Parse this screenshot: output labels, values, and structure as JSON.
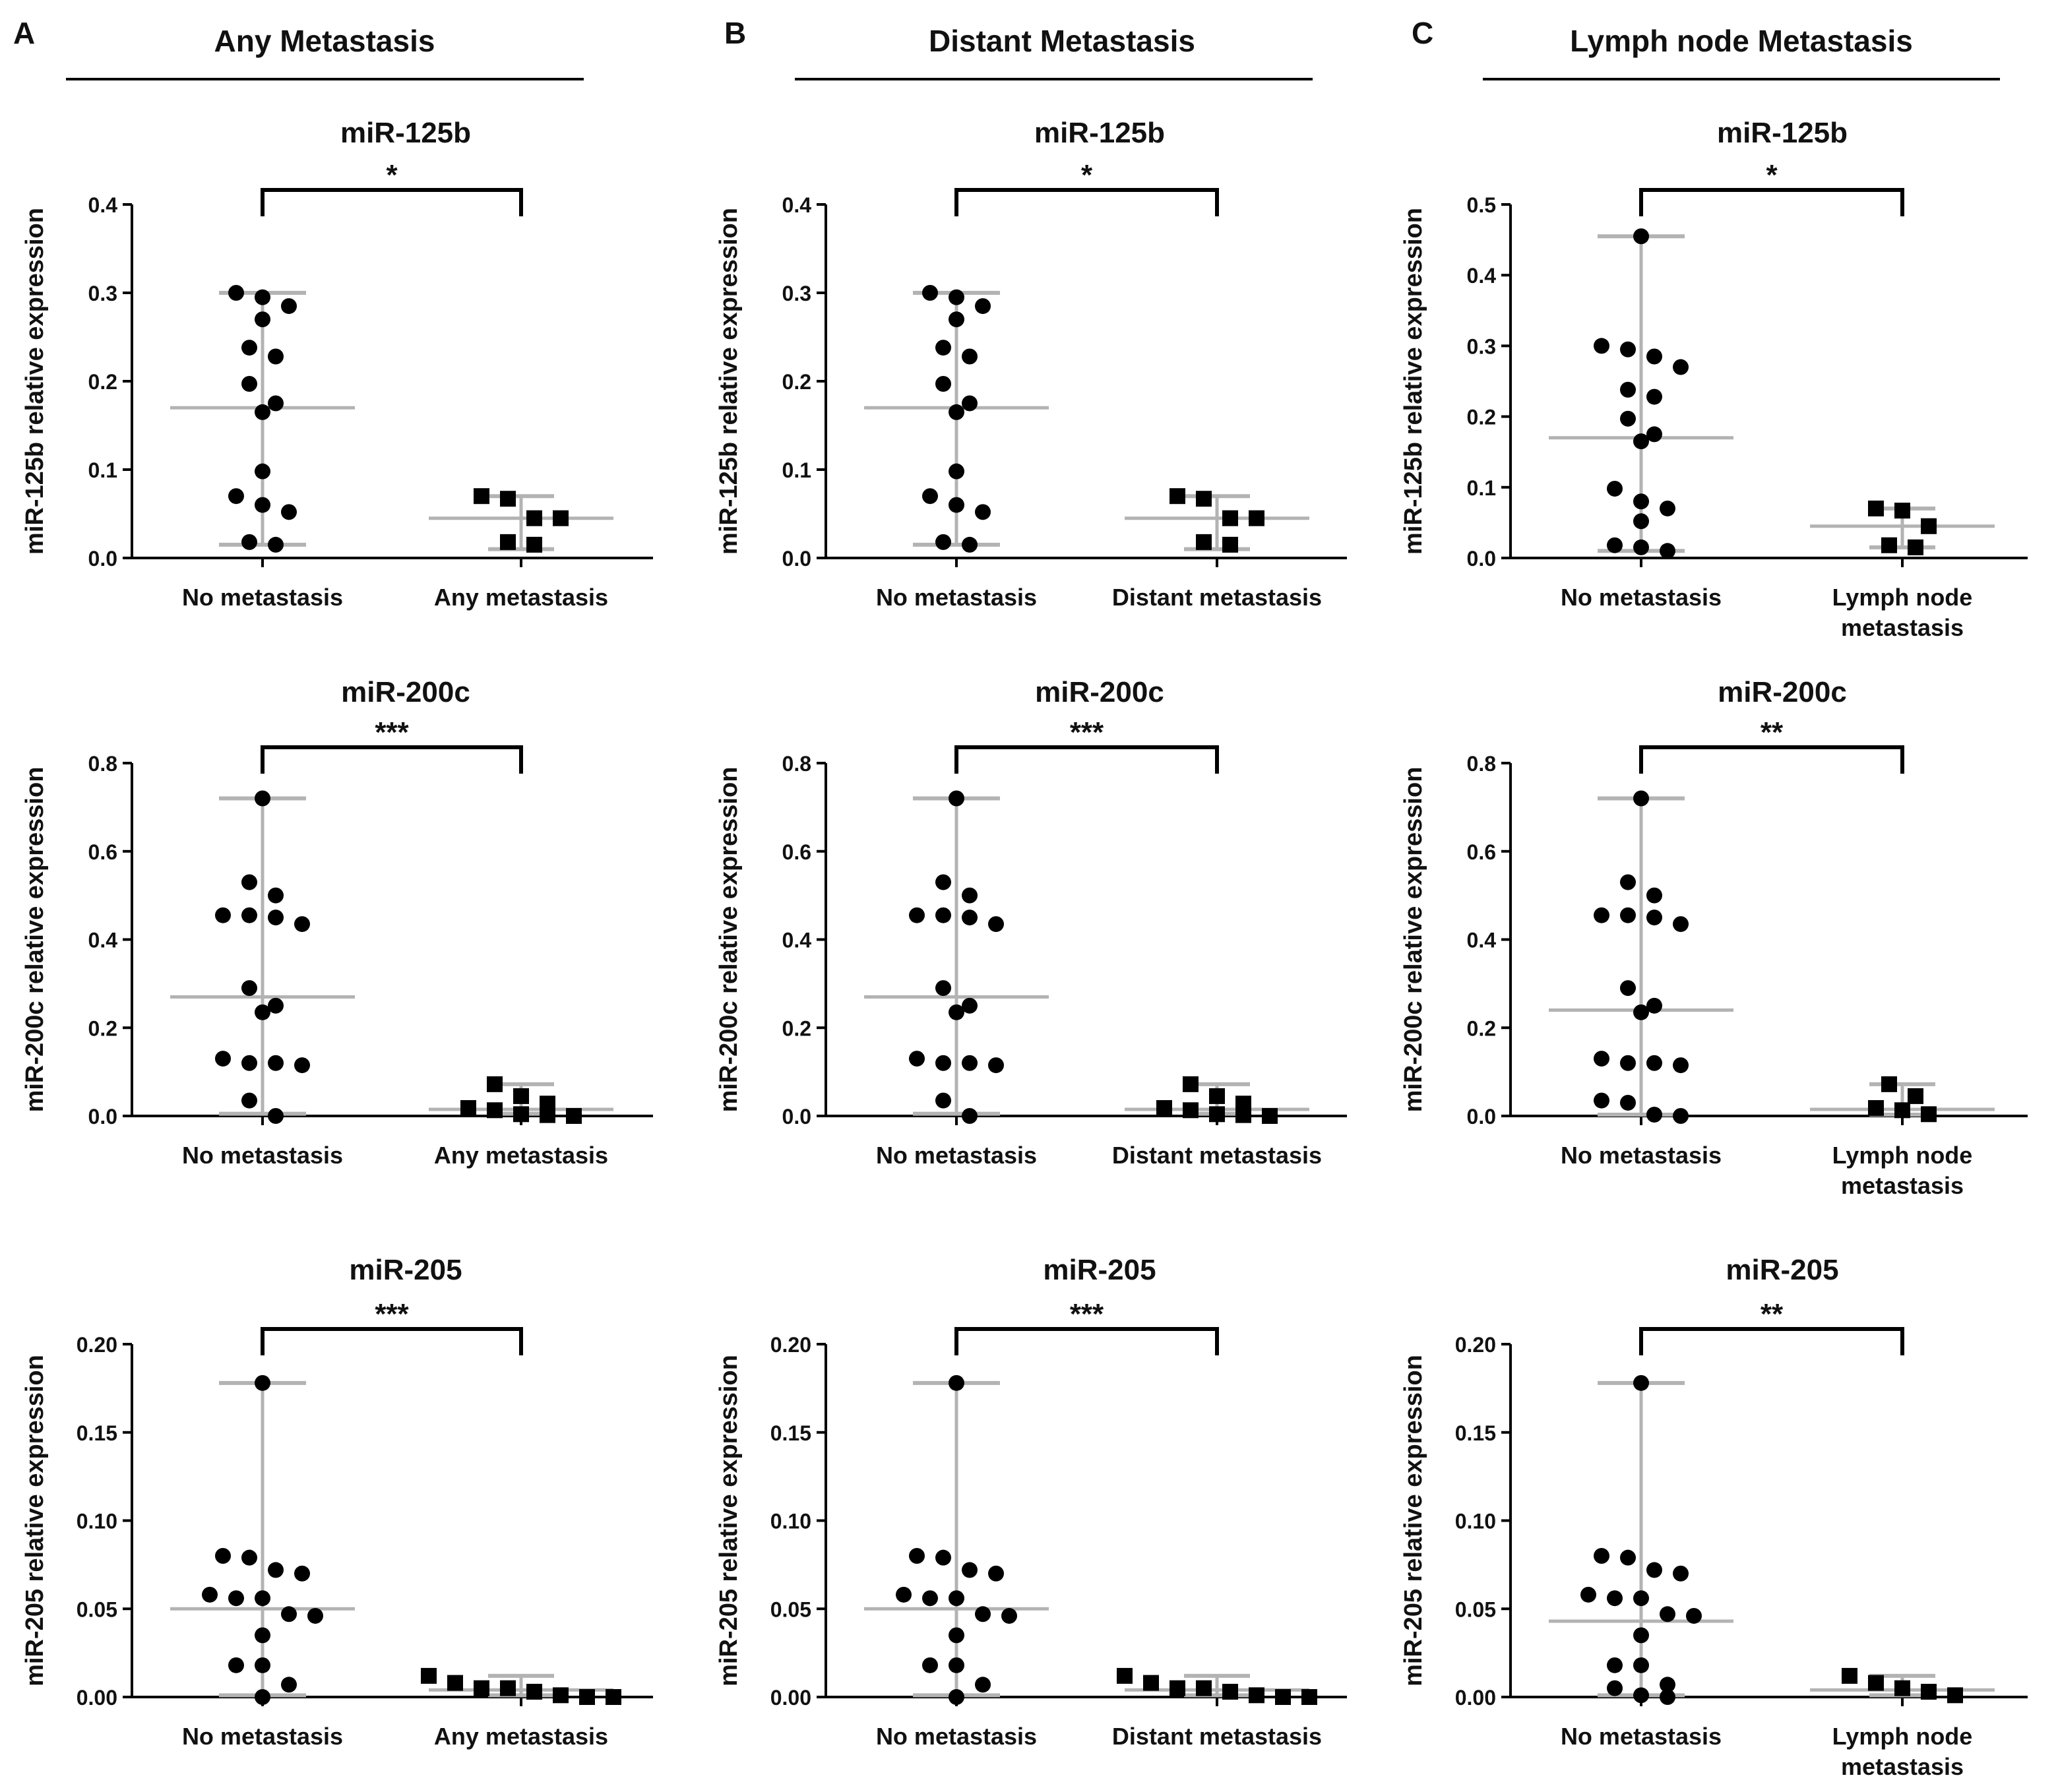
{
  "colors": {
    "points": "#000000",
    "whisker": "#b3b3b3",
    "axis": "#000000"
  },
  "sections": [
    {
      "letter": "A",
      "title": "Any Metastasis"
    },
    {
      "letter": "B",
      "title": "Distant Metastasis"
    },
    {
      "letter": "C",
      "title": "Lymph node Metastasis"
    }
  ],
  "chart_data": [
    {
      "type": "scatter",
      "panel": "A",
      "row": 0,
      "title": "miR-125b",
      "ylabel": "miR-125b relative expression",
      "ylim": [
        0,
        0.4
      ],
      "yticks": [
        0.0,
        0.1,
        0.2,
        0.3,
        0.4
      ],
      "ytick_labels": [
        "0.0",
        "0.1",
        "0.2",
        "0.3",
        "0.4"
      ],
      "significance": "*",
      "groups": [
        {
          "label": [
            "No metastasis"
          ],
          "marker": "circle",
          "median": 0.17,
          "min": 0.015,
          "max": 0.3,
          "values": [
            0.3,
            0.295,
            0.285,
            0.27,
            0.238,
            0.228,
            0.197,
            0.175,
            0.165,
            0.098,
            0.07,
            0.06,
            0.052,
            0.018,
            0.015
          ]
        },
        {
          "label": [
            "Any metastasis"
          ],
          "marker": "square",
          "median": 0.045,
          "min": 0.01,
          "max": 0.07,
          "values": [
            0.07,
            0.067,
            0.045,
            0.045,
            0.018,
            0.015
          ]
        }
      ]
    },
    {
      "type": "scatter",
      "panel": "B",
      "row": 0,
      "title": "miR-125b",
      "ylabel": "miR-125b relative expression",
      "ylim": [
        0,
        0.4
      ],
      "yticks": [
        0.0,
        0.1,
        0.2,
        0.3,
        0.4
      ],
      "ytick_labels": [
        "0.0",
        "0.1",
        "0.2",
        "0.3",
        "0.4"
      ],
      "significance": "*",
      "groups": [
        {
          "label": [
            "No metastasis"
          ],
          "marker": "circle",
          "median": 0.17,
          "min": 0.015,
          "max": 0.3,
          "values": [
            0.3,
            0.295,
            0.285,
            0.27,
            0.238,
            0.228,
            0.197,
            0.175,
            0.165,
            0.098,
            0.07,
            0.06,
            0.052,
            0.018,
            0.015
          ]
        },
        {
          "label": [
            "Distant metastasis"
          ],
          "marker": "square",
          "median": 0.045,
          "min": 0.01,
          "max": 0.07,
          "values": [
            0.07,
            0.067,
            0.045,
            0.045,
            0.018,
            0.015
          ]
        }
      ]
    },
    {
      "type": "scatter",
      "panel": "C",
      "row": 0,
      "title": "miR-125b",
      "ylabel": "miR-125b relative expression",
      "ylim": [
        0,
        0.5
      ],
      "yticks": [
        0.0,
        0.1,
        0.2,
        0.3,
        0.4,
        0.5
      ],
      "ytick_labels": [
        "0.0",
        "0.1",
        "0.2",
        "0.3",
        "0.4",
        "0.5"
      ],
      "significance": "*",
      "groups": [
        {
          "label": [
            "No metastasis"
          ],
          "marker": "circle",
          "median": 0.17,
          "min": 0.01,
          "max": 0.455,
          "values": [
            0.455,
            0.3,
            0.295,
            0.285,
            0.27,
            0.238,
            0.228,
            0.197,
            0.175,
            0.165,
            0.098,
            0.08,
            0.07,
            0.052,
            0.018,
            0.015,
            0.01
          ]
        },
        {
          "label": [
            "Lymph node",
            "metastasis"
          ],
          "marker": "square",
          "median": 0.045,
          "min": 0.015,
          "max": 0.07,
          "values": [
            0.07,
            0.067,
            0.045,
            0.018,
            0.015
          ]
        }
      ]
    },
    {
      "type": "scatter",
      "panel": "A",
      "row": 1,
      "title": "miR-200c",
      "ylabel": "miR-200c relative expression",
      "ylim": [
        0,
        0.8
      ],
      "yticks": [
        0.0,
        0.2,
        0.4,
        0.6,
        0.8
      ],
      "ytick_labels": [
        "0.0",
        "0.2",
        "0.4",
        "0.6",
        "0.8"
      ],
      "significance": "***",
      "groups": [
        {
          "label": [
            "No metastasis"
          ],
          "marker": "circle",
          "median": 0.27,
          "min": 0.005,
          "max": 0.72,
          "values": [
            0.72,
            0.53,
            0.5,
            0.455,
            0.455,
            0.45,
            0.435,
            0.29,
            0.25,
            0.235,
            0.13,
            0.12,
            0.12,
            0.115,
            0.035,
            0.0
          ]
        },
        {
          "label": [
            "Any metastasis"
          ],
          "marker": "square",
          "median": 0.015,
          "min": 0.005,
          "max": 0.072,
          "values": [
            0.072,
            0.045,
            0.028,
            0.018,
            0.013,
            0.004,
            0.002,
            0.0
          ]
        }
      ]
    },
    {
      "type": "scatter",
      "panel": "B",
      "row": 1,
      "title": "miR-200c",
      "ylabel": "miR-200c relative expression",
      "ylim": [
        0,
        0.8
      ],
      "yticks": [
        0.0,
        0.2,
        0.4,
        0.6,
        0.8
      ],
      "ytick_labels": [
        "0.0",
        "0.2",
        "0.4",
        "0.6",
        "0.8"
      ],
      "significance": "***",
      "groups": [
        {
          "label": [
            "No metastasis"
          ],
          "marker": "circle",
          "median": 0.27,
          "min": 0.005,
          "max": 0.72,
          "values": [
            0.72,
            0.53,
            0.5,
            0.455,
            0.455,
            0.45,
            0.435,
            0.29,
            0.25,
            0.235,
            0.13,
            0.12,
            0.12,
            0.115,
            0.035,
            0.0
          ]
        },
        {
          "label": [
            "Distant metastasis"
          ],
          "marker": "square",
          "median": 0.015,
          "min": 0.005,
          "max": 0.072,
          "values": [
            0.072,
            0.045,
            0.028,
            0.018,
            0.013,
            0.004,
            0.002,
            0.0
          ]
        }
      ]
    },
    {
      "type": "scatter",
      "panel": "C",
      "row": 1,
      "title": "miR-200c",
      "ylabel": "miR-200c relative expression",
      "ylim": [
        0,
        0.8
      ],
      "yticks": [
        0.0,
        0.2,
        0.4,
        0.6,
        0.8
      ],
      "ytick_labels": [
        "0.0",
        "0.2",
        "0.4",
        "0.6",
        "0.8"
      ],
      "significance": "**",
      "groups": [
        {
          "label": [
            "No metastasis"
          ],
          "marker": "circle",
          "median": 0.24,
          "min": 0.003,
          "max": 0.72,
          "values": [
            0.72,
            0.53,
            0.5,
            0.455,
            0.455,
            0.45,
            0.435,
            0.29,
            0.25,
            0.235,
            0.13,
            0.12,
            0.12,
            0.115,
            0.035,
            0.03,
            0.003,
            0.0
          ]
        },
        {
          "label": [
            "Lymph node",
            "metastasis"
          ],
          "marker": "square",
          "median": 0.015,
          "min": 0.003,
          "max": 0.072,
          "values": [
            0.072,
            0.045,
            0.018,
            0.013,
            0.004
          ]
        }
      ]
    },
    {
      "type": "scatter",
      "panel": "A",
      "row": 2,
      "title": "miR-205",
      "ylabel": "miR-205 relative expression",
      "ylim": [
        0,
        0.2
      ],
      "yticks": [
        0.0,
        0.05,
        0.1,
        0.15,
        0.2
      ],
      "ytick_labels": [
        "0.00",
        "0.05",
        "0.10",
        "0.15",
        "0.20"
      ],
      "significance": "***",
      "groups": [
        {
          "label": [
            "No metastasis"
          ],
          "marker": "circle",
          "median": 0.05,
          "min": 0.001,
          "max": 0.178,
          "values": [
            0.178,
            0.08,
            0.079,
            0.072,
            0.07,
            0.058,
            0.056,
            0.056,
            0.047,
            0.046,
            0.035,
            0.018,
            0.018,
            0.007,
            0.0
          ]
        },
        {
          "label": [
            "Any metastasis"
          ],
          "marker": "square",
          "median": 0.004,
          "min": 0.001,
          "max": 0.012,
          "values": [
            0.012,
            0.008,
            0.005,
            0.005,
            0.003,
            0.001,
            0.0,
            0.0
          ]
        }
      ]
    },
    {
      "type": "scatter",
      "panel": "B",
      "row": 2,
      "title": "miR-205",
      "ylabel": "miR-205 relative expression",
      "ylim": [
        0,
        0.2
      ],
      "yticks": [
        0.0,
        0.05,
        0.1,
        0.15,
        0.2
      ],
      "ytick_labels": [
        "0.00",
        "0.05",
        "0.10",
        "0.15",
        "0.20"
      ],
      "significance": "***",
      "groups": [
        {
          "label": [
            "No metastasis"
          ],
          "marker": "circle",
          "median": 0.05,
          "min": 0.001,
          "max": 0.178,
          "values": [
            0.178,
            0.08,
            0.079,
            0.072,
            0.07,
            0.058,
            0.056,
            0.056,
            0.047,
            0.046,
            0.035,
            0.018,
            0.018,
            0.007,
            0.0
          ]
        },
        {
          "label": [
            "Distant metastasis"
          ],
          "marker": "square",
          "median": 0.004,
          "min": 0.001,
          "max": 0.012,
          "values": [
            0.012,
            0.008,
            0.005,
            0.005,
            0.003,
            0.001,
            0.0,
            0.0
          ]
        }
      ]
    },
    {
      "type": "scatter",
      "panel": "C",
      "row": 2,
      "title": "miR-205",
      "ylabel": "miR-205 relative expression",
      "ylim": [
        0,
        0.2
      ],
      "yticks": [
        0.0,
        0.05,
        0.1,
        0.15,
        0.2
      ],
      "ytick_labels": [
        "0.00",
        "0.05",
        "0.10",
        "0.15",
        "0.20"
      ],
      "significance": "**",
      "groups": [
        {
          "label": [
            "No metastasis"
          ],
          "marker": "circle",
          "median": 0.043,
          "min": 0.001,
          "max": 0.178,
          "values": [
            0.178,
            0.08,
            0.079,
            0.072,
            0.07,
            0.058,
            0.056,
            0.056,
            0.047,
            0.046,
            0.035,
            0.018,
            0.018,
            0.007,
            0.005,
            0.001,
            0.0
          ]
        },
        {
          "label": [
            "Lymph node",
            "metastasis"
          ],
          "marker": "square",
          "median": 0.004,
          "min": 0.001,
          "max": 0.012,
          "values": [
            0.012,
            0.008,
            0.005,
            0.003,
            0.001
          ]
        }
      ]
    }
  ]
}
